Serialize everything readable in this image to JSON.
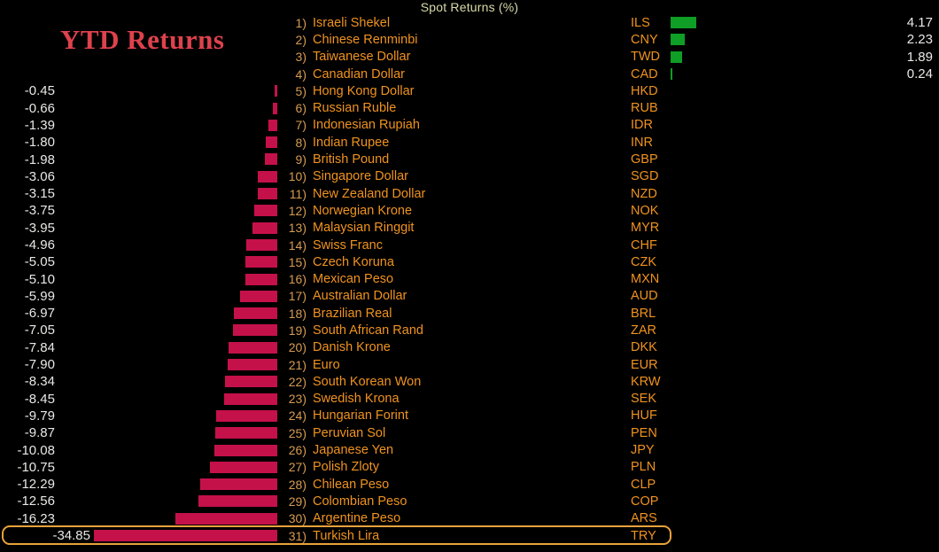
{
  "header": {
    "title": "Spot Returns (%)"
  },
  "title": {
    "text": "YTD Returns"
  },
  "colors": {
    "background": "#000000",
    "positive": "#0f9e26",
    "negative": "#c5114a",
    "label_orange": "#f0931f",
    "rank_tan": "#d79b52",
    "value_white": "#e8e8e6",
    "title_red": "#de424d",
    "header_yellow": "#d9dba8",
    "highlight_orange": "#e9a23b"
  },
  "chart_data": {
    "type": "bar",
    "orientation": "horizontal",
    "title": "YTD Returns",
    "subtitle": "Spot Returns (%)",
    "unit": "%",
    "xlim": [
      -34.85,
      4.17
    ],
    "legend": "none",
    "grid": "off",
    "highlighted_category": "Turkish Lira",
    "categories": [
      "Israeli Shekel",
      "Chinese Renminbi",
      "Taiwanese Dollar",
      "Canadian Dollar",
      "Hong Kong Dollar",
      "Russian Ruble",
      "Indonesian Rupiah",
      "Indian Rupee",
      "British Pound",
      "Singapore Dollar",
      "New Zealand Dollar",
      "Norwegian Krone",
      "Malaysian Ringgit",
      "Swiss Franc",
      "Czech Koruna",
      "Mexican Peso",
      "Australian Dollar",
      "Brazilian Real",
      "South African Rand",
      "Danish Krone",
      "Euro",
      "South Korean Won",
      "Swedish Krona",
      "Hungarian Forint",
      "Peruvian Sol",
      "Japanese Yen",
      "Polish Zloty",
      "Chilean Peso",
      "Colombian Peso",
      "Argentine Peso",
      "Turkish Lira"
    ],
    "codes": [
      "ILS",
      "CNY",
      "TWD",
      "CAD",
      "HKD",
      "RUB",
      "IDR",
      "INR",
      "GBP",
      "SGD",
      "NZD",
      "NOK",
      "MYR",
      "CHF",
      "CZK",
      "MXN",
      "AUD",
      "BRL",
      "ZAR",
      "DKK",
      "EUR",
      "KRW",
      "SEK",
      "HUF",
      "PEN",
      "JPY",
      "PLN",
      "CLP",
      "COP",
      "ARS",
      "TRY"
    ],
    "values": [
      4.17,
      2.23,
      1.89,
      0.24,
      -0.45,
      -0.66,
      -1.39,
      -1.8,
      -1.98,
      -3.06,
      -3.15,
      -3.75,
      -3.95,
      -4.96,
      -5.05,
      -5.1,
      -5.99,
      -6.97,
      -7.05,
      -7.84,
      -7.9,
      -8.34,
      -8.45,
      -9.79,
      -9.87,
      -10.08,
      -10.75,
      -12.29,
      -12.56,
      -16.23,
      -34.85
    ],
    "rows": [
      {
        "rank": "1)",
        "name": "Israeli Shekel",
        "code": "ILS",
        "value": 4.17,
        "display": "4.17",
        "highlight": false
      },
      {
        "rank": "2)",
        "name": "Chinese Renminbi",
        "code": "CNY",
        "value": 2.23,
        "display": "2.23",
        "highlight": false
      },
      {
        "rank": "3)",
        "name": "Taiwanese Dollar",
        "code": "TWD",
        "value": 1.89,
        "display": "1.89",
        "highlight": false
      },
      {
        "rank": "4)",
        "name": "Canadian Dollar",
        "code": "CAD",
        "value": 0.24,
        "display": "0.24",
        "highlight": false
      },
      {
        "rank": "5)",
        "name": "Hong Kong Dollar",
        "code": "HKD",
        "value": -0.45,
        "display": "-0.45",
        "highlight": false
      },
      {
        "rank": "6)",
        "name": "Russian Ruble",
        "code": "RUB",
        "value": -0.66,
        "display": "-0.66",
        "highlight": false
      },
      {
        "rank": "7)",
        "name": "Indonesian Rupiah",
        "code": "IDR",
        "value": -1.39,
        "display": "-1.39",
        "highlight": false
      },
      {
        "rank": "8)",
        "name": "Indian Rupee",
        "code": "INR",
        "value": -1.8,
        "display": "-1.80",
        "highlight": false
      },
      {
        "rank": "9)",
        "name": "British Pound",
        "code": "GBP",
        "value": -1.98,
        "display": "-1.98",
        "highlight": false
      },
      {
        "rank": "10)",
        "name": "Singapore Dollar",
        "code": "SGD",
        "value": -3.06,
        "display": "-3.06",
        "highlight": false
      },
      {
        "rank": "11)",
        "name": "New Zealand Dollar",
        "code": "NZD",
        "value": -3.15,
        "display": "-3.15",
        "highlight": false
      },
      {
        "rank": "12)",
        "name": "Norwegian Krone",
        "code": "NOK",
        "value": -3.75,
        "display": "-3.75",
        "highlight": false
      },
      {
        "rank": "13)",
        "name": "Malaysian Ringgit",
        "code": "MYR",
        "value": -3.95,
        "display": "-3.95",
        "highlight": false
      },
      {
        "rank": "14)",
        "name": "Swiss Franc",
        "code": "CHF",
        "value": -4.96,
        "display": "-4.96",
        "highlight": false
      },
      {
        "rank": "15)",
        "name": "Czech Koruna",
        "code": "CZK",
        "value": -5.05,
        "display": "-5.05",
        "highlight": false
      },
      {
        "rank": "16)",
        "name": "Mexican Peso",
        "code": "MXN",
        "value": -5.1,
        "display": "-5.10",
        "highlight": false
      },
      {
        "rank": "17)",
        "name": "Australian Dollar",
        "code": "AUD",
        "value": -5.99,
        "display": "-5.99",
        "highlight": false
      },
      {
        "rank": "18)",
        "name": "Brazilian Real",
        "code": "BRL",
        "value": -6.97,
        "display": "-6.97",
        "highlight": false
      },
      {
        "rank": "19)",
        "name": "South African Rand",
        "code": "ZAR",
        "value": -7.05,
        "display": "-7.05",
        "highlight": false
      },
      {
        "rank": "20)",
        "name": "Danish Krone",
        "code": "DKK",
        "value": -7.84,
        "display": "-7.84",
        "highlight": false
      },
      {
        "rank": "21)",
        "name": "Euro",
        "code": "EUR",
        "value": -7.9,
        "display": "-7.90",
        "highlight": false
      },
      {
        "rank": "22)",
        "name": "South Korean Won",
        "code": "KRW",
        "value": -8.34,
        "display": "-8.34",
        "highlight": false
      },
      {
        "rank": "23)",
        "name": "Swedish Krona",
        "code": "SEK",
        "value": -8.45,
        "display": "-8.45",
        "highlight": false
      },
      {
        "rank": "24)",
        "name": "Hungarian Forint",
        "code": "HUF",
        "value": -9.79,
        "display": "-9.79",
        "highlight": false
      },
      {
        "rank": "25)",
        "name": "Peruvian Sol",
        "code": "PEN",
        "value": -9.87,
        "display": "-9.87",
        "highlight": false
      },
      {
        "rank": "26)",
        "name": "Japanese Yen",
        "code": "JPY",
        "value": -10.08,
        "display": "-10.08",
        "highlight": false
      },
      {
        "rank": "27)",
        "name": "Polish Zloty",
        "code": "PLN",
        "value": -10.75,
        "display": "-10.75",
        "highlight": false
      },
      {
        "rank": "28)",
        "name": "Chilean Peso",
        "code": "CLP",
        "value": -12.29,
        "display": "-12.29",
        "highlight": false
      },
      {
        "rank": "29)",
        "name": "Colombian Peso",
        "code": "COP",
        "value": -12.56,
        "display": "-12.56",
        "highlight": false
      },
      {
        "rank": "30)",
        "name": "Argentine Peso",
        "code": "ARS",
        "value": -16.23,
        "display": "-16.23",
        "highlight": false
      },
      {
        "rank": "31)",
        "name": "Turkish Lira",
        "code": "TRY",
        "value": -34.85,
        "display": "-34.85",
        "highlight": true
      }
    ]
  }
}
